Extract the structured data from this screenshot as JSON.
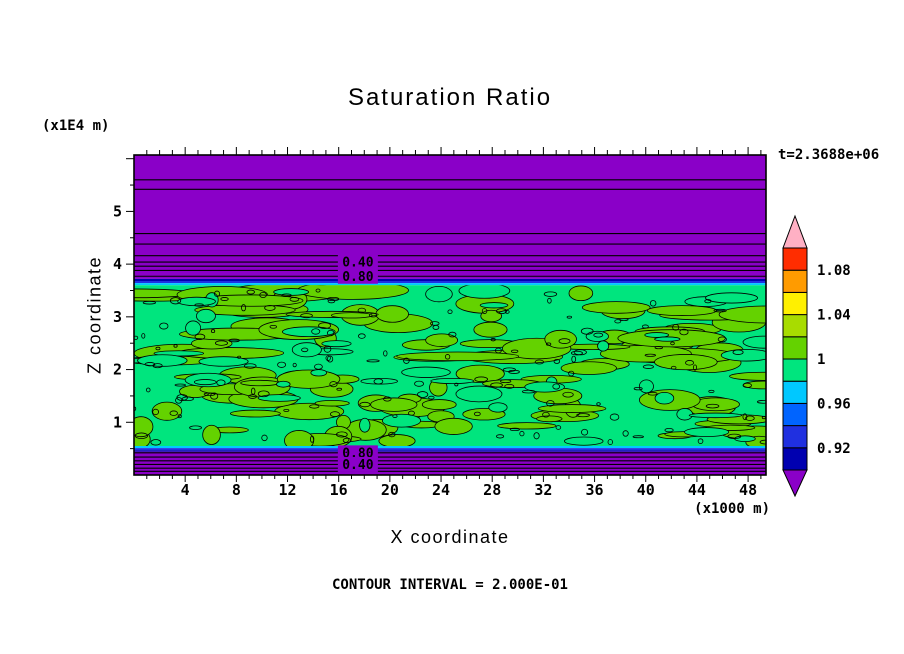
{
  "chart_data": {
    "type": "heatmap",
    "title": "Saturation Ratio",
    "xlabel": "X coordinate",
    "ylabel": "Z coordinate",
    "x_unit_label": "(x1000 m)",
    "y_unit_label": "(x1E4 m)",
    "time_label": "t=2.3688e+06",
    "contour_note": "CONTOUR INTERVAL = 2.000E-01",
    "x_range": [
      0,
      49.4
    ],
    "z_range": [
      0,
      6.07
    ],
    "x_ticks": [
      4,
      8,
      12,
      16,
      20,
      24,
      28,
      32,
      36,
      40,
      44,
      48
    ],
    "z_ticks": [
      1,
      2,
      3,
      4,
      5
    ],
    "bands": [
      {
        "z_from": 3.72,
        "z_to": 6.07,
        "color": "#8A00C8"
      },
      {
        "z_from": 3.68,
        "z_to": 3.72,
        "color": "#0000B0"
      },
      {
        "z_from": 3.64,
        "z_to": 3.68,
        "color": "#2030E0"
      },
      {
        "z_from": 3.6,
        "z_to": 3.64,
        "color": "#00C8FF"
      },
      {
        "z_from": 0.55,
        "z_to": 3.6,
        "color": "#00E57E"
      },
      {
        "z_from": 0.51,
        "z_to": 0.55,
        "color": "#00C8FF"
      },
      {
        "z_from": 0.47,
        "z_to": 0.51,
        "color": "#2030E0"
      },
      {
        "z_from": 0.44,
        "z_to": 0.47,
        "color": "#0000B0"
      },
      {
        "z_from": 0.0,
        "z_to": 0.44,
        "color": "#8A00C8"
      }
    ],
    "contour_lines_z": [
      5.6,
      5.42,
      4.58,
      4.38,
      4.16,
      4.04,
      3.96,
      3.88,
      3.77,
      0.42,
      0.34,
      0.27,
      0.2,
      0.13,
      0.07
    ],
    "contour_labels": [
      {
        "text": "0.40",
        "x": 17.5,
        "z": 4.04
      },
      {
        "text": "0.80",
        "x": 17.5,
        "z": 3.77
      },
      {
        "text": "0.80",
        "x": 17.5,
        "z": 0.42
      },
      {
        "text": "0.40",
        "x": 17.5,
        "z": 0.2
      }
    ],
    "field_colors": {
      "base_green": "#00E57E",
      "patch_green": "#64D200",
      "purple": "#8A00C8",
      "line": "#000000"
    },
    "noise": {
      "seed": 7,
      "patch_count": 115,
      "base_patch_count": 45,
      "speckle_count": 160,
      "z_min": 0.6,
      "z_max": 3.52
    },
    "colorbar": {
      "labels_top_to_bottom": [
        "1.08",
        "1.04",
        "1",
        "0.96",
        "0.92"
      ],
      "segments_bottom_to_top": [
        "#0000B0",
        "#2030E0",
        "#0064FF",
        "#00C8FF",
        "#00E57E",
        "#64D200",
        "#A8DC00",
        "#FFF000",
        "#FF9B00",
        "#FF2D00"
      ],
      "under_color": "#8A00C8",
      "over_color": "#FFB0C4"
    }
  }
}
